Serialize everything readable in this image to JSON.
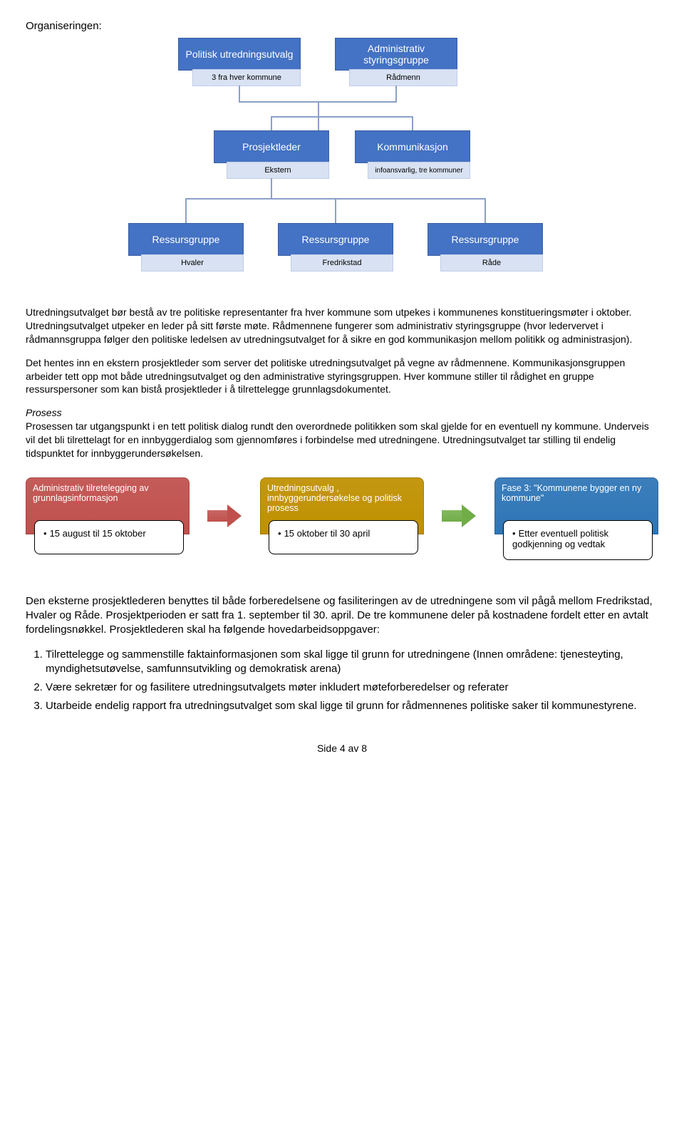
{
  "title": "Organiseringen:",
  "org": {
    "top": [
      {
        "big": "Politisk utredningsutvalg",
        "sub": "3 fra hver kommune"
      },
      {
        "big": "Administrativ styringsgruppe",
        "sub": "Rådmenn"
      }
    ],
    "mid": [
      {
        "big": "Prosjektleder",
        "sub": "Ekstern"
      },
      {
        "big": "Kommunikasjon",
        "sub": "infoansvarlig, tre kommuner"
      }
    ],
    "bot": [
      {
        "big": "Ressursgruppe",
        "sub": "Hvaler"
      },
      {
        "big": "Ressursgruppe",
        "sub": "Fredrikstad"
      },
      {
        "big": "Ressursgruppe",
        "sub": "Råde"
      }
    ],
    "colors": {
      "big_bg": "#4472c4",
      "sub_bg": "#d9e2f3",
      "line": "#8aa0c8"
    }
  },
  "p1": "Utredningsutvalget bør bestå av tre politiske representanter fra hver kommune som utpekes i kommunenes konstitueringsmøter i oktober. Utredningsutvalget utpeker en leder på sitt første møte. Rådmennene fungerer som administrativ styringsgruppe (hvor ledervervet i rådmannsgruppa følger den politiske ledelsen av utredningsutvalget for å sikre en god kommunikasjon mellom politikk og administrasjon).",
  "p2": "Det hentes inn en ekstern prosjektleder som server det politiske utredningsutvalget på vegne av rådmennene. Kommunikasjonsgruppen arbeider tett opp mot både utredningsutvalget og den administrative styringsgruppen. Hver kommune stiller til rådighet en gruppe ressurspersoner som kan bistå prosjektleder i å tilrettelegge grunnlagsdokumentet.",
  "p3_heading": "Prosess",
  "p3": "Prosessen tar utgangspunkt i en tett politisk dialog rundt den overordnede politikken som skal gjelde for en eventuell ny kommune. Underveis vil det bli tilrettelagt for en innbyggerdialog som gjennomføres i forbindelse med utredningene. Utredningsutvalget tar stilling til endelig tidspunktet for innbyggerundersøkelsen.",
  "phases": [
    {
      "hdr": "Administrativ tilretelegging av grunnlagsinformasjon",
      "body": "15 august til 15 oktober",
      "color": "#c0504d"
    },
    {
      "hdr": "Utredningsutvalg , innbyggerundersøkelse og politisk prosess",
      "body": "15 oktober til  30 april",
      "color": "#bf9000"
    },
    {
      "hdr": "Fase 3: \"Kommunene bygger en ny kommune\"",
      "body": "Etter eventuell politisk godkjenning og vedtak",
      "color": "#2e75b6"
    }
  ],
  "arrows": [
    {
      "color": "#c0504d"
    },
    {
      "color": "#70ad47"
    }
  ],
  "p4": "Den eksterne prosjektlederen benyttes til både forberedelsene og fasiliteringen av de utredningene som vil pågå mellom Fredrikstad, Hvaler og Råde. Prosjektperioden er satt fra 1. september til 30. april. De tre kommunene deler på kostnadene fordelt etter en avtalt fordelingsnøkkel. Prosjektlederen skal ha følgende hovedarbeidsoppgaver:",
  "list": [
    "Tilrettelegge og sammenstille faktainformasjonen som skal ligge til grunn for utredningene (Innen områdene: tjenesteyting, myndighetsutøvelse, samfunnsutvikling og demokratisk arena)",
    "Være sekretær for og fasilitere utredningsutvalgets møter inkludert møteforberedelser og referater",
    "Utarbeide endelig rapport fra utredningsutvalget som skal ligge til grunn for rådmennenes politiske saker til kommunestyrene."
  ],
  "footer": "Side 4 av 8"
}
